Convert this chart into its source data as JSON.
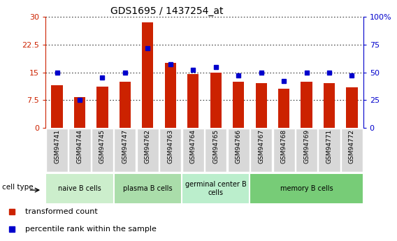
{
  "title": "GDS1695 / 1437254_at",
  "samples": [
    "GSM94741",
    "GSM94744",
    "GSM94745",
    "GSM94747",
    "GSM94762",
    "GSM94763",
    "GSM94764",
    "GSM94765",
    "GSM94766",
    "GSM94767",
    "GSM94768",
    "GSM94769",
    "GSM94771",
    "GSM94772"
  ],
  "transformed_count": [
    11.5,
    8.2,
    11.2,
    12.5,
    28.5,
    17.5,
    14.5,
    15.0,
    12.5,
    12.0,
    10.5,
    12.5,
    12.0,
    11.0
  ],
  "percentile_rank": [
    50,
    25,
    45,
    50,
    72,
    57,
    52,
    55,
    47,
    50,
    42,
    50,
    50,
    47
  ],
  "ylim_left": [
    0,
    30
  ],
  "ylim_right": [
    0,
    100
  ],
  "yticks_left": [
    0,
    7.5,
    15,
    22.5,
    30
  ],
  "yticks_right": [
    0,
    25,
    50,
    75,
    100
  ],
  "ytick_labels_left": [
    "0",
    "7.5",
    "15",
    "22.5",
    "30"
  ],
  "ytick_labels_right": [
    "0",
    "25",
    "50",
    "75",
    "100%"
  ],
  "cell_types": [
    {
      "label": "naive B cells",
      "start": 0,
      "end": 3,
      "color": "#cceecc"
    },
    {
      "label": "plasma B cells",
      "start": 3,
      "end": 6,
      "color": "#aaddaa"
    },
    {
      "label": "germinal center B\ncells",
      "start": 6,
      "end": 9,
      "color": "#bbeecc"
    },
    {
      "label": "memory B cells",
      "start": 9,
      "end": 14,
      "color": "#77cc77"
    }
  ],
  "bar_color": "#cc2200",
  "dot_color": "#0000cc",
  "bg_color": "#ffffff",
  "left_axis_color": "#cc2200",
  "right_axis_color": "#0000cc",
  "legend_items": [
    {
      "label": "transformed count",
      "color": "#cc2200"
    },
    {
      "label": "percentile rank within the sample",
      "color": "#0000cc"
    }
  ],
  "cell_type_label": "cell type",
  "bar_width": 0.5,
  "tick_bg_color": "#d8d8d8"
}
